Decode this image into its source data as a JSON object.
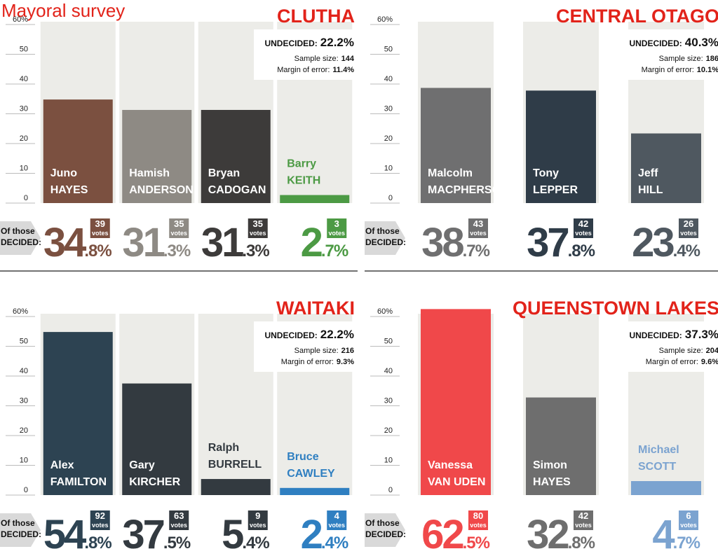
{
  "title": "Mayoral survey",
  "chart_data": [
    {
      "type": "bar",
      "title": "CLUTHA",
      "undecided_label": "UNDECIDED:",
      "undecided": "22.2%",
      "sample_size_label": "Sample size:",
      "sample_size": 144,
      "margin_label": "Margin of error:",
      "margin": "11.4%",
      "decided_label": [
        "Of those",
        "DECIDED:"
      ],
      "categories": [
        [
          "Juno",
          "HAYES"
        ],
        [
          "Hamish",
          "ANDERSON"
        ],
        [
          "Bryan",
          "CADOGAN"
        ],
        [
          "Barry",
          "KEITH"
        ]
      ],
      "values": [
        34.8,
        31.3,
        31.3,
        2.7
      ],
      "value_labels": [
        "34.8%",
        "31.3%",
        "31.3%",
        "2.7%"
      ],
      "votes": [
        39,
        35,
        35,
        3
      ],
      "votes_label": "votes",
      "colors": [
        "#7b5040",
        "#8e8a84",
        "#3d3b3a",
        "#4c9a44"
      ],
      "ylim": [
        0,
        60
      ],
      "yticks": [
        0,
        10,
        20,
        30,
        40,
        50,
        {
          "value": 60,
          "label": "60%"
        }
      ]
    },
    {
      "type": "bar",
      "title": "CENTRAL OTAGO",
      "undecided_label": "UNDECIDED:",
      "undecided": "40.3%",
      "sample_size_label": "Sample size:",
      "sample_size": 186,
      "margin_label": "Margin of error:",
      "margin": "10.1%",
      "decided_label": [
        "Of those",
        "DECIDED:"
      ],
      "categories": [
        [
          "Malcolm",
          "MACPHERSON"
        ],
        [
          "Tony",
          "LEPPER"
        ],
        [
          "Jeff",
          "HILL"
        ]
      ],
      "values": [
        38.7,
        37.8,
        23.4
      ],
      "value_labels": [
        "38.7%",
        "37.8%",
        "23.4%"
      ],
      "votes": [
        43,
        42,
        26
      ],
      "votes_label": "votes",
      "colors": [
        "#6f6f70",
        "#2f3c48",
        "#4f5860"
      ],
      "ylim": [
        0,
        60
      ],
      "yticks": [
        0,
        10,
        20,
        30,
        40,
        50,
        {
          "value": 60,
          "label": "60%"
        }
      ]
    },
    {
      "type": "bar",
      "title": "WAITAKI",
      "undecided_label": "UNDECIDED:",
      "undecided": "22.2%",
      "sample_size_label": "Sample size:",
      "sample_size": 216,
      "margin_label": "Margin of error:",
      "margin": "9.3%",
      "decided_label": [
        "Of those",
        "DECIDED:"
      ],
      "categories": [
        [
          "Alex",
          "FAMILTON"
        ],
        [
          "Gary",
          "KIRCHER"
        ],
        [
          "Ralph",
          "BURRELL"
        ],
        [
          "Bruce",
          "CAWLEY"
        ]
      ],
      "values": [
        54.8,
        37.5,
        5.4,
        2.4
      ],
      "value_labels": [
        "54.8%",
        "37.5%",
        "5.4%",
        "2.4%"
      ],
      "votes": [
        92,
        63,
        9,
        4
      ],
      "votes_label": "votes",
      "colors": [
        "#2d4352",
        "#333a40",
        "#333a40",
        "#2f7fc1"
      ],
      "ylim": [
        0,
        60
      ],
      "yticks": [
        0,
        10,
        20,
        30,
        40,
        50,
        {
          "value": 60,
          "label": "60%"
        }
      ]
    },
    {
      "type": "bar",
      "title": "QUEENSTOWN LAKES",
      "undecided_label": "UNDECIDED:",
      "undecided": "37.3%",
      "sample_size_label": "Sample size:",
      "sample_size": 204,
      "margin_label": "Margin of error:",
      "margin": "9.6%",
      "decided_label": [
        "Of those",
        "DECIDED:"
      ],
      "categories": [
        [
          "Vanessa",
          "VAN UDEN"
        ],
        [
          "Simon",
          "HAYES"
        ],
        [
          "Michael",
          "SCOTT"
        ]
      ],
      "values": [
        62.5,
        32.8,
        4.7
      ],
      "value_labels": [
        "62.5%",
        "32.8%",
        "4.7%"
      ],
      "votes": [
        80,
        42,
        6
      ],
      "votes_label": "votes",
      "colors": [
        "#f0484a",
        "#6e6e6e",
        "#7ba3d0"
      ],
      "ylim": [
        0,
        60
      ],
      "yticks": [
        0,
        10,
        20,
        30,
        40,
        50,
        {
          "value": 60,
          "label": "60%"
        }
      ]
    }
  ]
}
